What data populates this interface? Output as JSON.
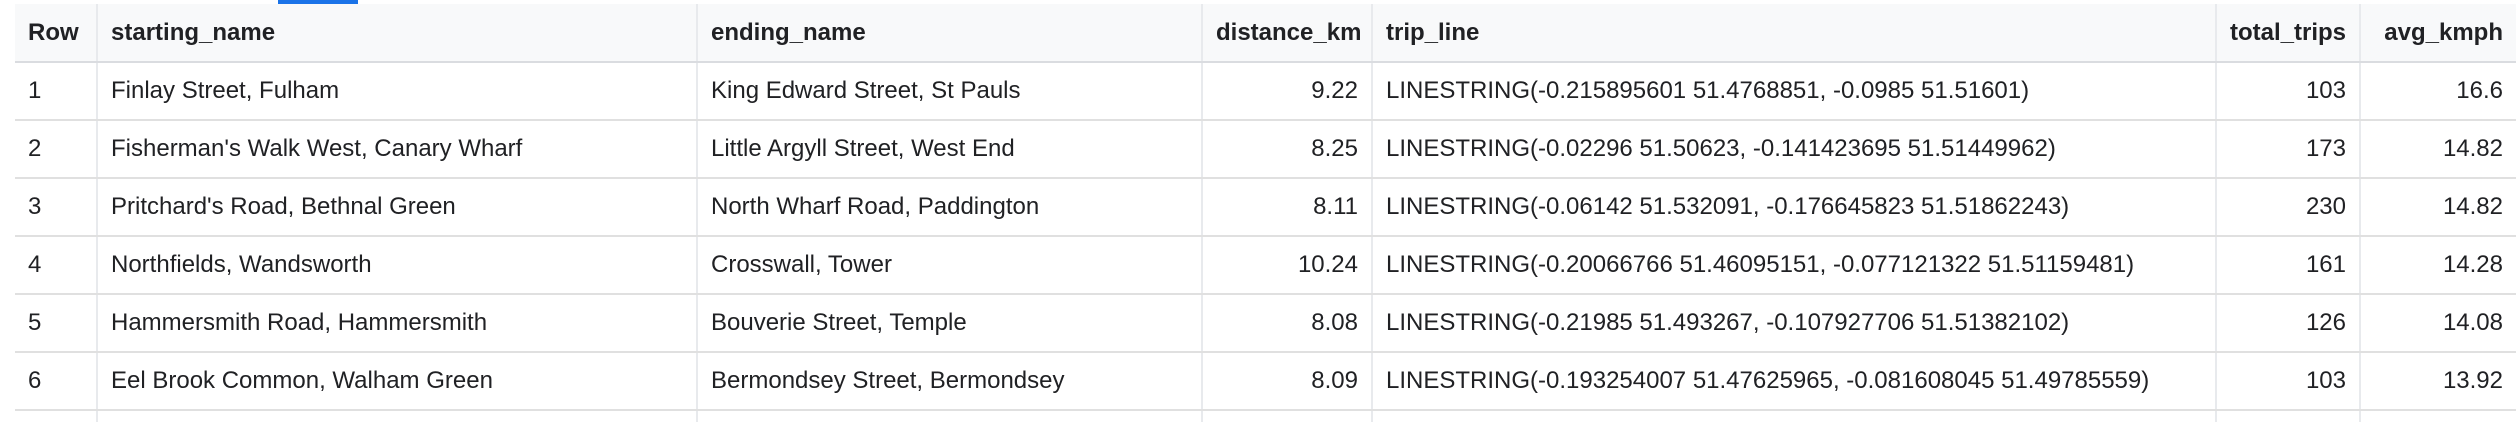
{
  "results": {
    "columns": [
      "Row",
      "starting_name",
      "ending_name",
      "distance_km",
      "trip_line",
      "total_trips",
      "avg_kmph"
    ],
    "rows": [
      [
        "1",
        "Finlay Street, Fulham",
        "King Edward Street, St Pauls",
        "9.22",
        "LINESTRING(-0.215895601 51.4768851, -0.0985 51.51601)",
        "103",
        "16.6"
      ],
      [
        "2",
        "Fisherman's Walk West, Canary Wharf",
        "Little Argyll Street, West End",
        "8.25",
        "LINESTRING(-0.02296 51.50623, -0.141423695 51.51449962)",
        "173",
        "14.82"
      ],
      [
        "3",
        "Pritchard's Road, Bethnal Green",
        "North Wharf Road, Paddington",
        "8.11",
        "LINESTRING(-0.06142 51.532091, -0.176645823 51.51862243)",
        "230",
        "14.82"
      ],
      [
        "4",
        "Northfields, Wandsworth",
        "Crosswall, Tower",
        "10.24",
        "LINESTRING(-0.20066766 51.46095151, -0.077121322 51.51159481)",
        "161",
        "14.28"
      ],
      [
        "5",
        "Hammersmith Road, Hammersmith",
        "Bouverie Street, Temple",
        "8.08",
        "LINESTRING(-0.21985 51.493267, -0.107927706 51.51382102)",
        "126",
        "14.08"
      ],
      [
        "6",
        "Eel Brook Common, Walham Green",
        "Bermondsey Street, Bermondsey",
        "8.09",
        "LINESTRING(-0.193254007 51.47625965, -0.081608045 51.49785559)",
        "103",
        "13.92"
      ]
    ]
  },
  "colors": {
    "accent": "#1a73e8",
    "header_bg": "#f8f9fa",
    "border": "#e0e0e0"
  }
}
